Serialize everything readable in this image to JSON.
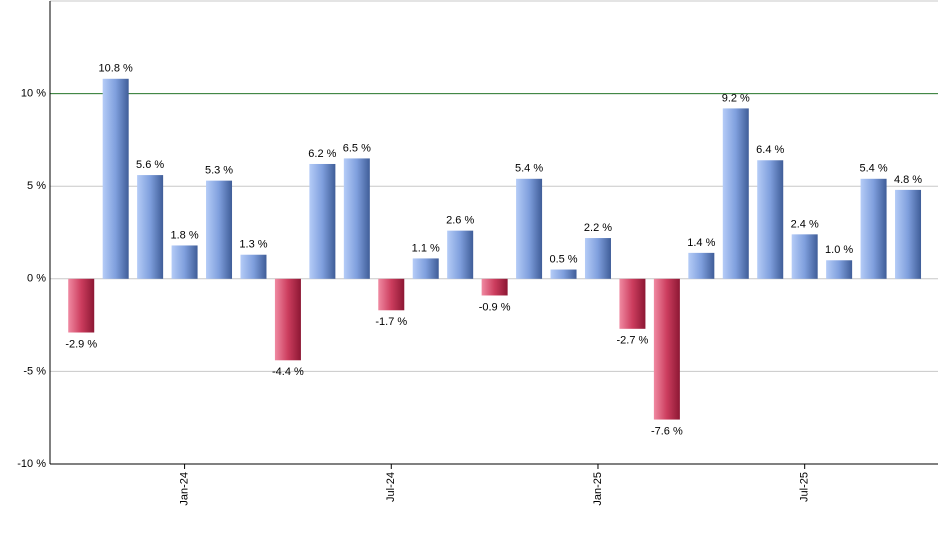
{
  "chart_data": {
    "type": "bar",
    "categories": [
      null,
      null,
      null,
      "Jan-24",
      null,
      null,
      null,
      null,
      null,
      "Jul-24",
      null,
      null,
      null,
      null,
      null,
      "Jan-25",
      null,
      null,
      null,
      null,
      null,
      "Jul-25",
      null,
      null,
      null
    ],
    "values": [
      -2.9,
      10.8,
      5.6,
      1.8,
      5.3,
      1.3,
      -4.4,
      6.2,
      6.5,
      -1.7,
      1.1,
      2.6,
      -0.9,
      5.4,
      0.5,
      2.2,
      -2.7,
      -7.6,
      1.4,
      9.2,
      6.4,
      2.4,
      1.0,
      5.4,
      4.8
    ],
    "value_labels": [
      "-2.9 %",
      "10.8 %",
      "5.6 %",
      "1.8 %",
      "5.3 %",
      "1.3 %",
      "-4.4 %",
      "6.2 %",
      "6.5 %",
      "-1.7 %",
      "1.1 %",
      "2.6 %",
      "-0.9 %",
      "5.4 %",
      "0.5 %",
      "2.2 %",
      "-2.7 %",
      "-7.6 %",
      "1.4 %",
      "9.2 %",
      "6.4 %",
      "2.4 %",
      "1.0 %",
      "5.4 %",
      "4.8 %"
    ],
    "ylim": [
      -10,
      15
    ],
    "yticks": [
      {
        "value": -10,
        "label": "-10 %"
      },
      {
        "value": -5,
        "label": "-5 %"
      },
      {
        "value": 0,
        "label": "0 %"
      },
      {
        "value": 5,
        "label": "5 %"
      },
      {
        "value": 10,
        "label": "10 %"
      }
    ],
    "grid": true,
    "reference_line": {
      "value": 10,
      "color": "#2e7d32"
    },
    "positive_color": "#6f8fcf",
    "negative_color": "#c9395a"
  }
}
